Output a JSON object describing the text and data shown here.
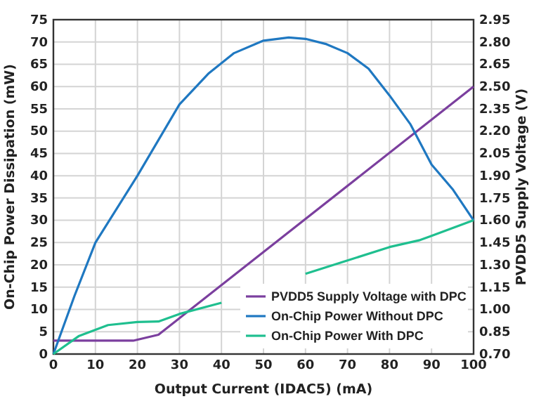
{
  "chart_data": {
    "type": "line",
    "xlabel": "Output Current (IDAC5) (mA)",
    "ylabel": "On-Chip Power Dissipation (mW)",
    "y2label": "PVDD5 Supply Voltage (V)",
    "xlim": [
      0,
      100
    ],
    "xticks": [
      0,
      10,
      20,
      30,
      40,
      50,
      60,
      70,
      80,
      90,
      100
    ],
    "ylim": [
      0,
      75
    ],
    "yticks": [
      0,
      5,
      10,
      15,
      20,
      25,
      30,
      35,
      40,
      45,
      50,
      55,
      60,
      65,
      70,
      75
    ],
    "y2lim": [
      0.7,
      2.95
    ],
    "y2ticks": [
      {
        "value": 0.7,
        "label": "0.70"
      },
      0.85,
      {
        "value": 1.0,
        "label": "1.00"
      },
      1.15,
      {
        "value": 1.3,
        "label": "1.30"
      },
      1.45,
      {
        "value": 1.6,
        "label": "1.60"
      },
      1.75,
      {
        "value": 1.9,
        "label": "1.90"
      },
      2.05,
      {
        "value": 2.2,
        "label": "2.20"
      },
      2.35,
      {
        "value": 2.5,
        "label": "2.50"
      },
      2.65,
      {
        "value": 2.8,
        "label": "2.80"
      },
      2.95
    ],
    "grid": true,
    "legend": "bottom right",
    "marker": "none",
    "line_style": "solid",
    "series": [
      {
        "name": "PVDD5 Supply Voltage with DPC",
        "color": "#7b3f9e",
        "axis": "y2",
        "x": [
          0,
          19,
          25,
          100
        ],
        "values": [
          0.79,
          0.79,
          0.83,
          2.5
        ]
      },
      {
        "name": "On-Chip Power Without DPC",
        "color": "#1f78c1",
        "x": [
          0,
          5,
          10,
          20,
          30,
          37,
          43,
          50,
          56,
          60,
          65,
          70,
          75,
          80,
          85,
          90,
          95,
          100
        ],
        "values": [
          0,
          13,
          25,
          40,
          56,
          63,
          67.5,
          70.3,
          71,
          70.7,
          69.5,
          67.5,
          64,
          58,
          51.5,
          42.5,
          37,
          30
        ]
      },
      {
        "name": "On-Chip Power With DPC",
        "color": "#1fbf8f",
        "x": [
          0,
          6,
          13,
          20,
          25,
          30,
          40,
          50,
          60,
          70,
          80,
          87,
          90,
          100
        ],
        "values": [
          0,
          4,
          6.5,
          7.2,
          7.3,
          9,
          11.5,
          null,
          18,
          21,
          24,
          25.5,
          26.5,
          30
        ]
      }
    ]
  }
}
